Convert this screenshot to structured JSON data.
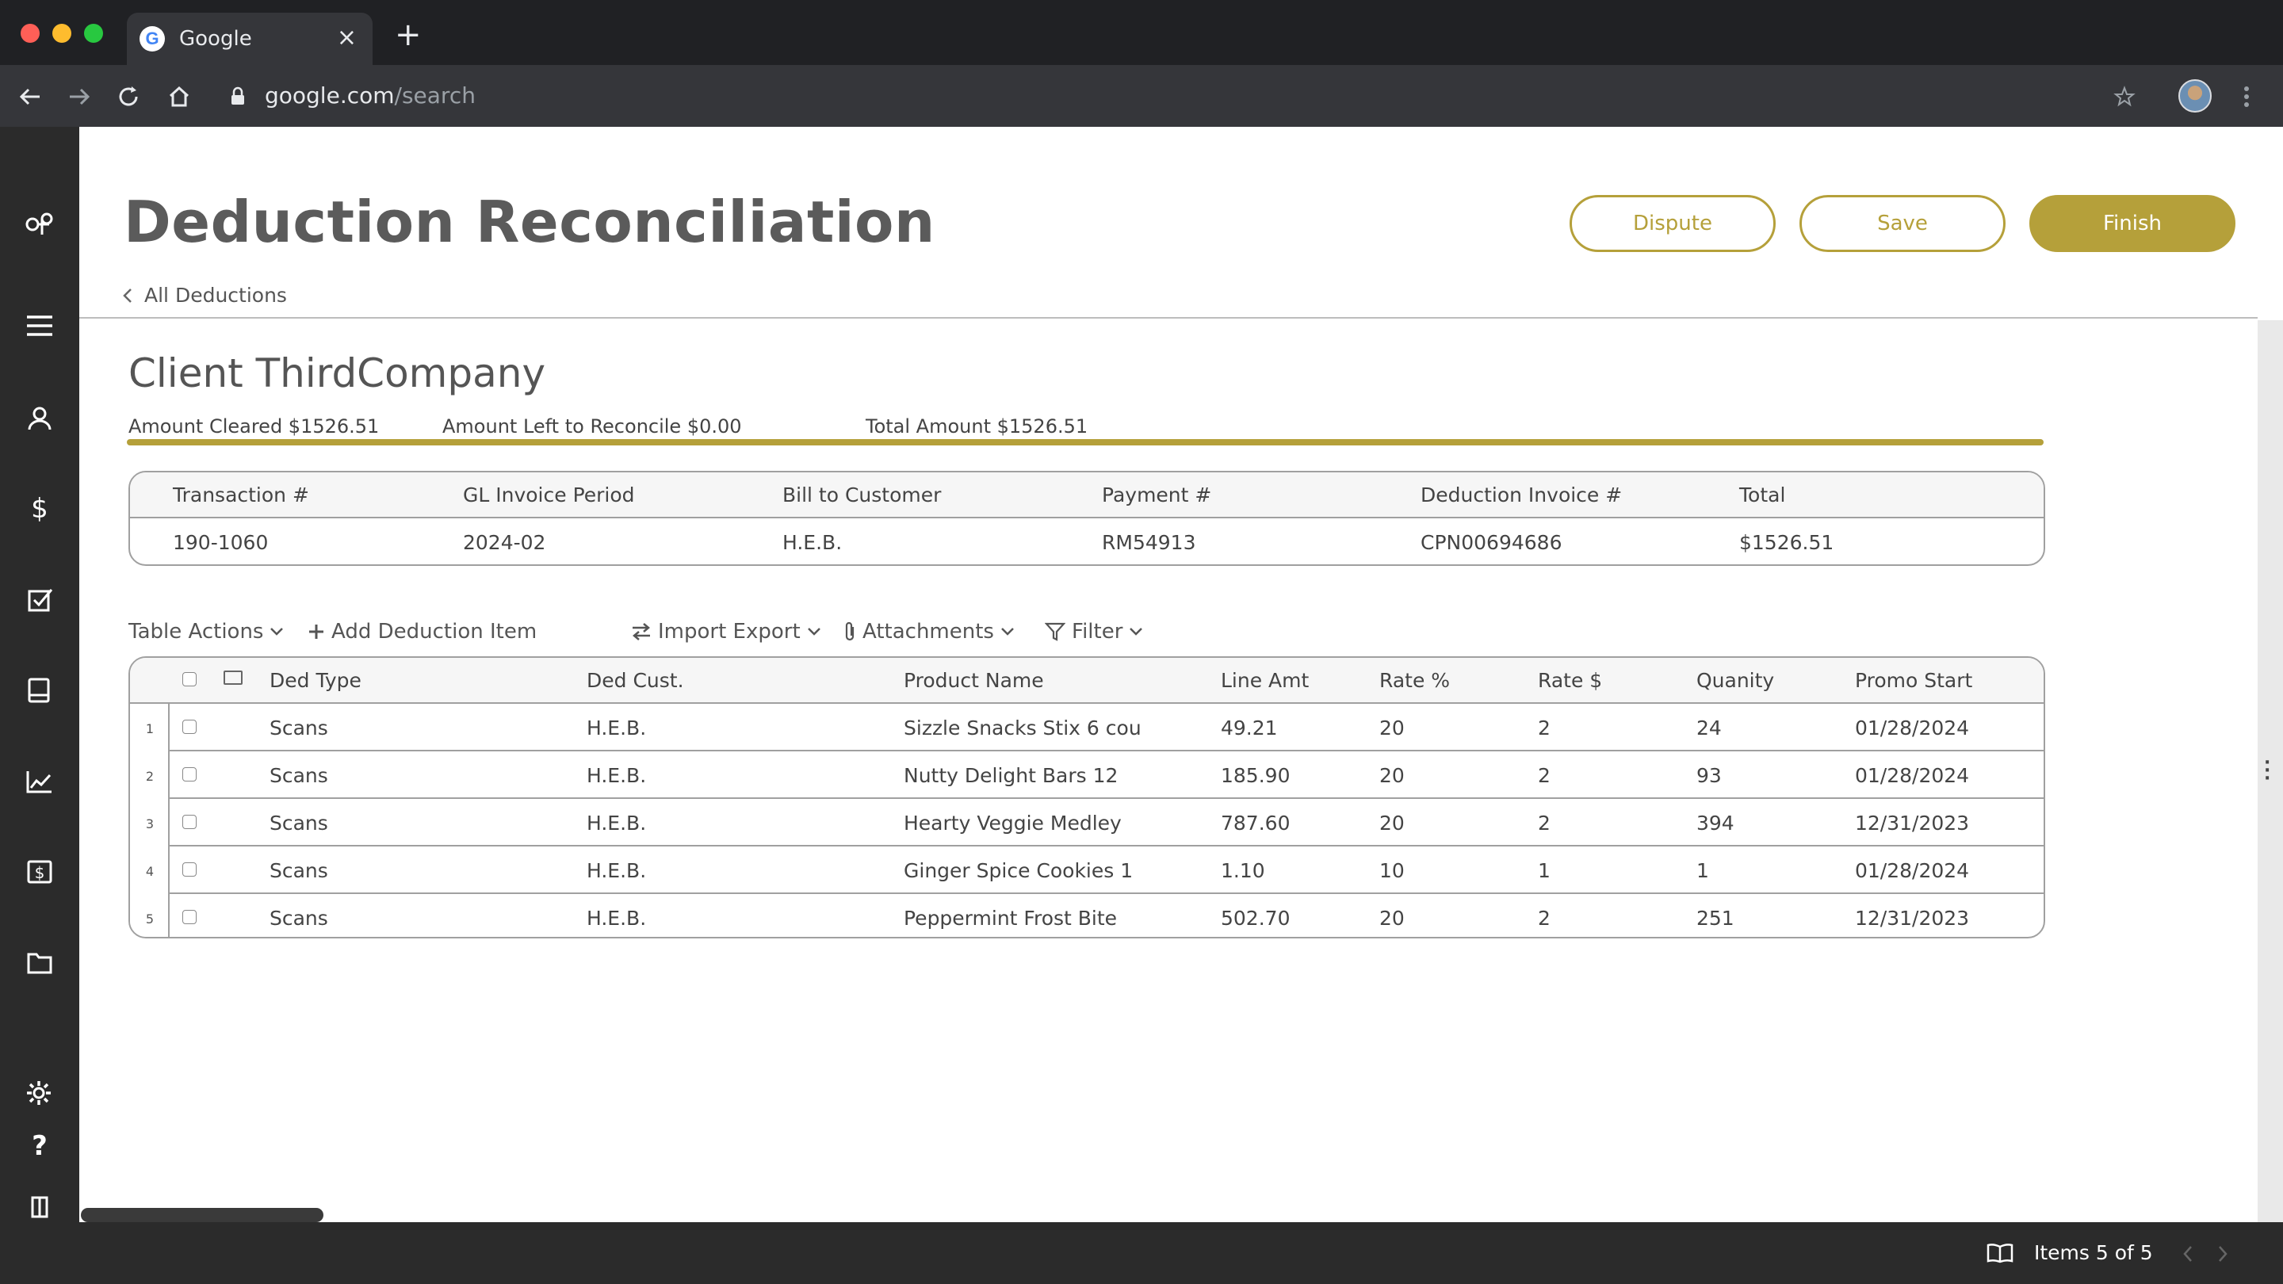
{
  "browser": {
    "tab_title": "Google",
    "tab_close": "×",
    "new_tab": "+",
    "url_host": "google.com",
    "url_path": "/search",
    "icons": [
      "back-icon",
      "forward-icon",
      "reload-icon",
      "home-icon",
      "lock-icon",
      "star-icon",
      "menu-dots-icon"
    ]
  },
  "sidebar": {
    "items": [
      "logo-icon",
      "menu-icon",
      "user-icon",
      "dollar-icon",
      "checkbox-icon",
      "book-icon",
      "chart-icon",
      "invoice-icon",
      "folder-icon",
      "settings-icon",
      "help-icon",
      "bookmark-icon"
    ]
  },
  "header": {
    "title": "Deduction Reconciliation",
    "dispute_label": "Dispute",
    "save_label": "Save",
    "finish_label": "Finish",
    "back_label": "All Deductions"
  },
  "client": {
    "title": "Client ThirdCompany",
    "amount_cleared": "Amount Cleared $1526.51",
    "amount_left": "Amount Left to Reconcile $0.00",
    "total_amount": "Total Amount $1526.51"
  },
  "info_table": {
    "headers": [
      "Transaction #",
      "GL Invoice Period",
      "Bill to Customer",
      "Payment #",
      "Deduction Invoice #",
      "Total"
    ],
    "values": [
      "190-1060",
      "2024-02",
      "H.E.B.",
      "RM54913",
      "CPN00694686",
      "$1526.51"
    ]
  },
  "actions": {
    "table_actions": "Table Actions",
    "add_item": "Add Deduction Item",
    "import_export": "Import Export",
    "attachments": "Attachments",
    "filter": "Filter"
  },
  "grid": {
    "headers": [
      "Ded  Type",
      "Ded Cust.",
      "Product Name",
      "Line Amt",
      "Rate %",
      "Rate $",
      "Quanity",
      "Promo Start"
    ],
    "rows": [
      {
        "num": "1",
        "type": "Scans",
        "cust": "H.E.B.",
        "product": "Sizzle Snacks Stix 6 cou",
        "line_amt": "49.21",
        "rate_pct": "20",
        "rate_dollar": "2",
        "qty": "24",
        "promo_start": "01/28/2024"
      },
      {
        "num": "2",
        "type": "Scans",
        "cust": "H.E.B.",
        "product": "Nutty Delight Bars 12",
        "line_amt": "185.90",
        "rate_pct": "20",
        "rate_dollar": "2",
        "qty": "93",
        "promo_start": "01/28/2024"
      },
      {
        "num": "3",
        "type": "Scans",
        "cust": "H.E.B.",
        "product": "Hearty Veggie Medley",
        "line_amt": "787.60",
        "rate_pct": "20",
        "rate_dollar": "2",
        "qty": "394",
        "promo_start": "12/31/2023"
      },
      {
        "num": "4",
        "type": "Scans",
        "cust": "H.E.B.",
        "product": "Ginger Spice Cookies 1",
        "line_amt": "1.10",
        "rate_pct": "10",
        "rate_dollar": "1",
        "qty": "1",
        "promo_start": "01/28/2024"
      },
      {
        "num": "5",
        "type": "Scans",
        "cust": "H.E.B.",
        "product": "Peppermint Frost Bite",
        "line_amt": "502.70",
        "rate_pct": "20",
        "rate_dollar": "2",
        "qty": "251",
        "promo_start": "12/31/2023"
      }
    ]
  },
  "footer": {
    "items_label": "Items 5 of 5"
  },
  "colors": {
    "accent": "#b5a03a",
    "sidebar_bg": "#2b2b2b",
    "chrome_bg": "#202124"
  }
}
